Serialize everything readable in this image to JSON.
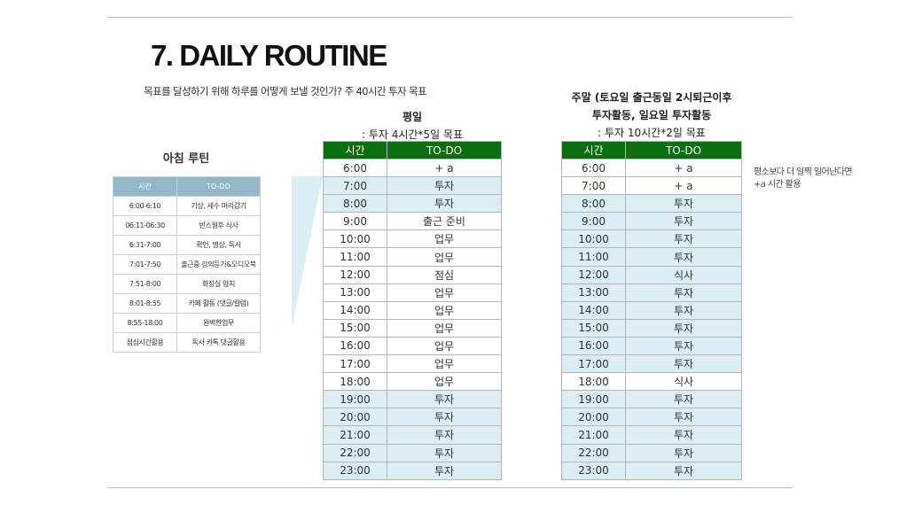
{
  "title": "7. DAILY ROUTINE",
  "subtitle": "목표를 달성하기 위해 하루를 어떻게 보낼 것인가? 주 40시간 투자 목표",
  "morning": {
    "title": "아침 루틴",
    "headers": [
      "시간",
      "TO-DO"
    ],
    "rows": [
      [
        "6:00-6:10",
        "기상, 세수 머리감기"
      ],
      [
        "06:11-06:30",
        "빈스웜후 식사"
      ],
      [
        "6:31-7:00",
        "확언, 명상, 독서"
      ],
      [
        "7:01-7:50",
        "출근중 강의듣기&오디오북"
      ],
      [
        "7:51-8:00",
        "화장실 양치"
      ],
      [
        "8:01-8:55",
        "카페 활동 (댓글/칼럼)"
      ],
      [
        "8:55-18:00",
        "완벽한업무"
      ],
      [
        "점심시간활용",
        "독서 카톡 댓글활용"
      ]
    ]
  },
  "weekday": {
    "title": "평일",
    "target": ": 투자 4시간*5일 목표",
    "headers": [
      "시간",
      "TO-DO"
    ],
    "rows": [
      {
        "time": "6:00",
        "todo": "+ a",
        "hl": false
      },
      {
        "time": "7:00",
        "todo": "투자",
        "hl": true
      },
      {
        "time": "8:00",
        "todo": "투자",
        "hl": true
      },
      {
        "time": "9:00",
        "todo": "출근 준비",
        "hl": false
      },
      {
        "time": "10:00",
        "todo": "업무",
        "hl": false
      },
      {
        "time": "11:00",
        "todo": "업무",
        "hl": false
      },
      {
        "time": "12:00",
        "todo": "점심",
        "hl": false
      },
      {
        "time": "13:00",
        "todo": "업무",
        "hl": false
      },
      {
        "time": "14:00",
        "todo": "업무",
        "hl": false
      },
      {
        "time": "15:00",
        "todo": "업무",
        "hl": false
      },
      {
        "time": "16:00",
        "todo": "업무",
        "hl": false
      },
      {
        "time": "17:00",
        "todo": "업무",
        "hl": false
      },
      {
        "time": "18:00",
        "todo": "업무",
        "hl": false
      },
      {
        "time": "19:00",
        "todo": "투자",
        "hl": true
      },
      {
        "time": "20:00",
        "todo": "투자",
        "hl": true
      },
      {
        "time": "21:00",
        "todo": "투자",
        "hl": true
      },
      {
        "time": "22:00",
        "todo": "투자",
        "hl": true
      },
      {
        "time": "23:00",
        "todo": "투자",
        "hl": true
      }
    ]
  },
  "weekend": {
    "title_line1": "주말 (토요일 출근동일 2시퇴근이후",
    "title_line2": "투자활동, 일요일 투자활동",
    "target": ": 투자 10시간*2일 목표",
    "headers": [
      "시간",
      "TO-DO"
    ],
    "rows": [
      {
        "time": "6:00",
        "todo": "+ a",
        "hl": false
      },
      {
        "time": "7:00",
        "todo": "+ a",
        "hl": false
      },
      {
        "time": "8:00",
        "todo": "투자",
        "hl": true
      },
      {
        "time": "9:00",
        "todo": "투자",
        "hl": true
      },
      {
        "time": "10:00",
        "todo": "투자",
        "hl": true
      },
      {
        "time": "11:00",
        "todo": "투자",
        "hl": true
      },
      {
        "time": "12:00",
        "todo": "식사",
        "hl": true
      },
      {
        "time": "13:00",
        "todo": "투자",
        "hl": true
      },
      {
        "time": "14:00",
        "todo": "투자",
        "hl": true
      },
      {
        "time": "15:00",
        "todo": "투자",
        "hl": true
      },
      {
        "time": "16:00",
        "todo": "투자",
        "hl": true
      },
      {
        "time": "17:00",
        "todo": "투자",
        "hl": true
      },
      {
        "time": "18:00",
        "todo": "식사",
        "hl": false
      },
      {
        "time": "19:00",
        "todo": "투자",
        "hl": true
      },
      {
        "time": "20:00",
        "todo": "투자",
        "hl": true
      },
      {
        "time": "21:00",
        "todo": "투자",
        "hl": true
      },
      {
        "time": "22:00",
        "todo": "투자",
        "hl": true
      },
      {
        "time": "23:00",
        "todo": "투자",
        "hl": true
      }
    ]
  },
  "note": {
    "line1": "평소보다 더 일찍 일어난다면",
    "line2": "+a 시간 활용"
  },
  "colors": {
    "morning_header": "#93b7c6",
    "schedule_header": "#0b6e10",
    "highlight": "#dbeef3",
    "wedge": "#dbeef3"
  }
}
